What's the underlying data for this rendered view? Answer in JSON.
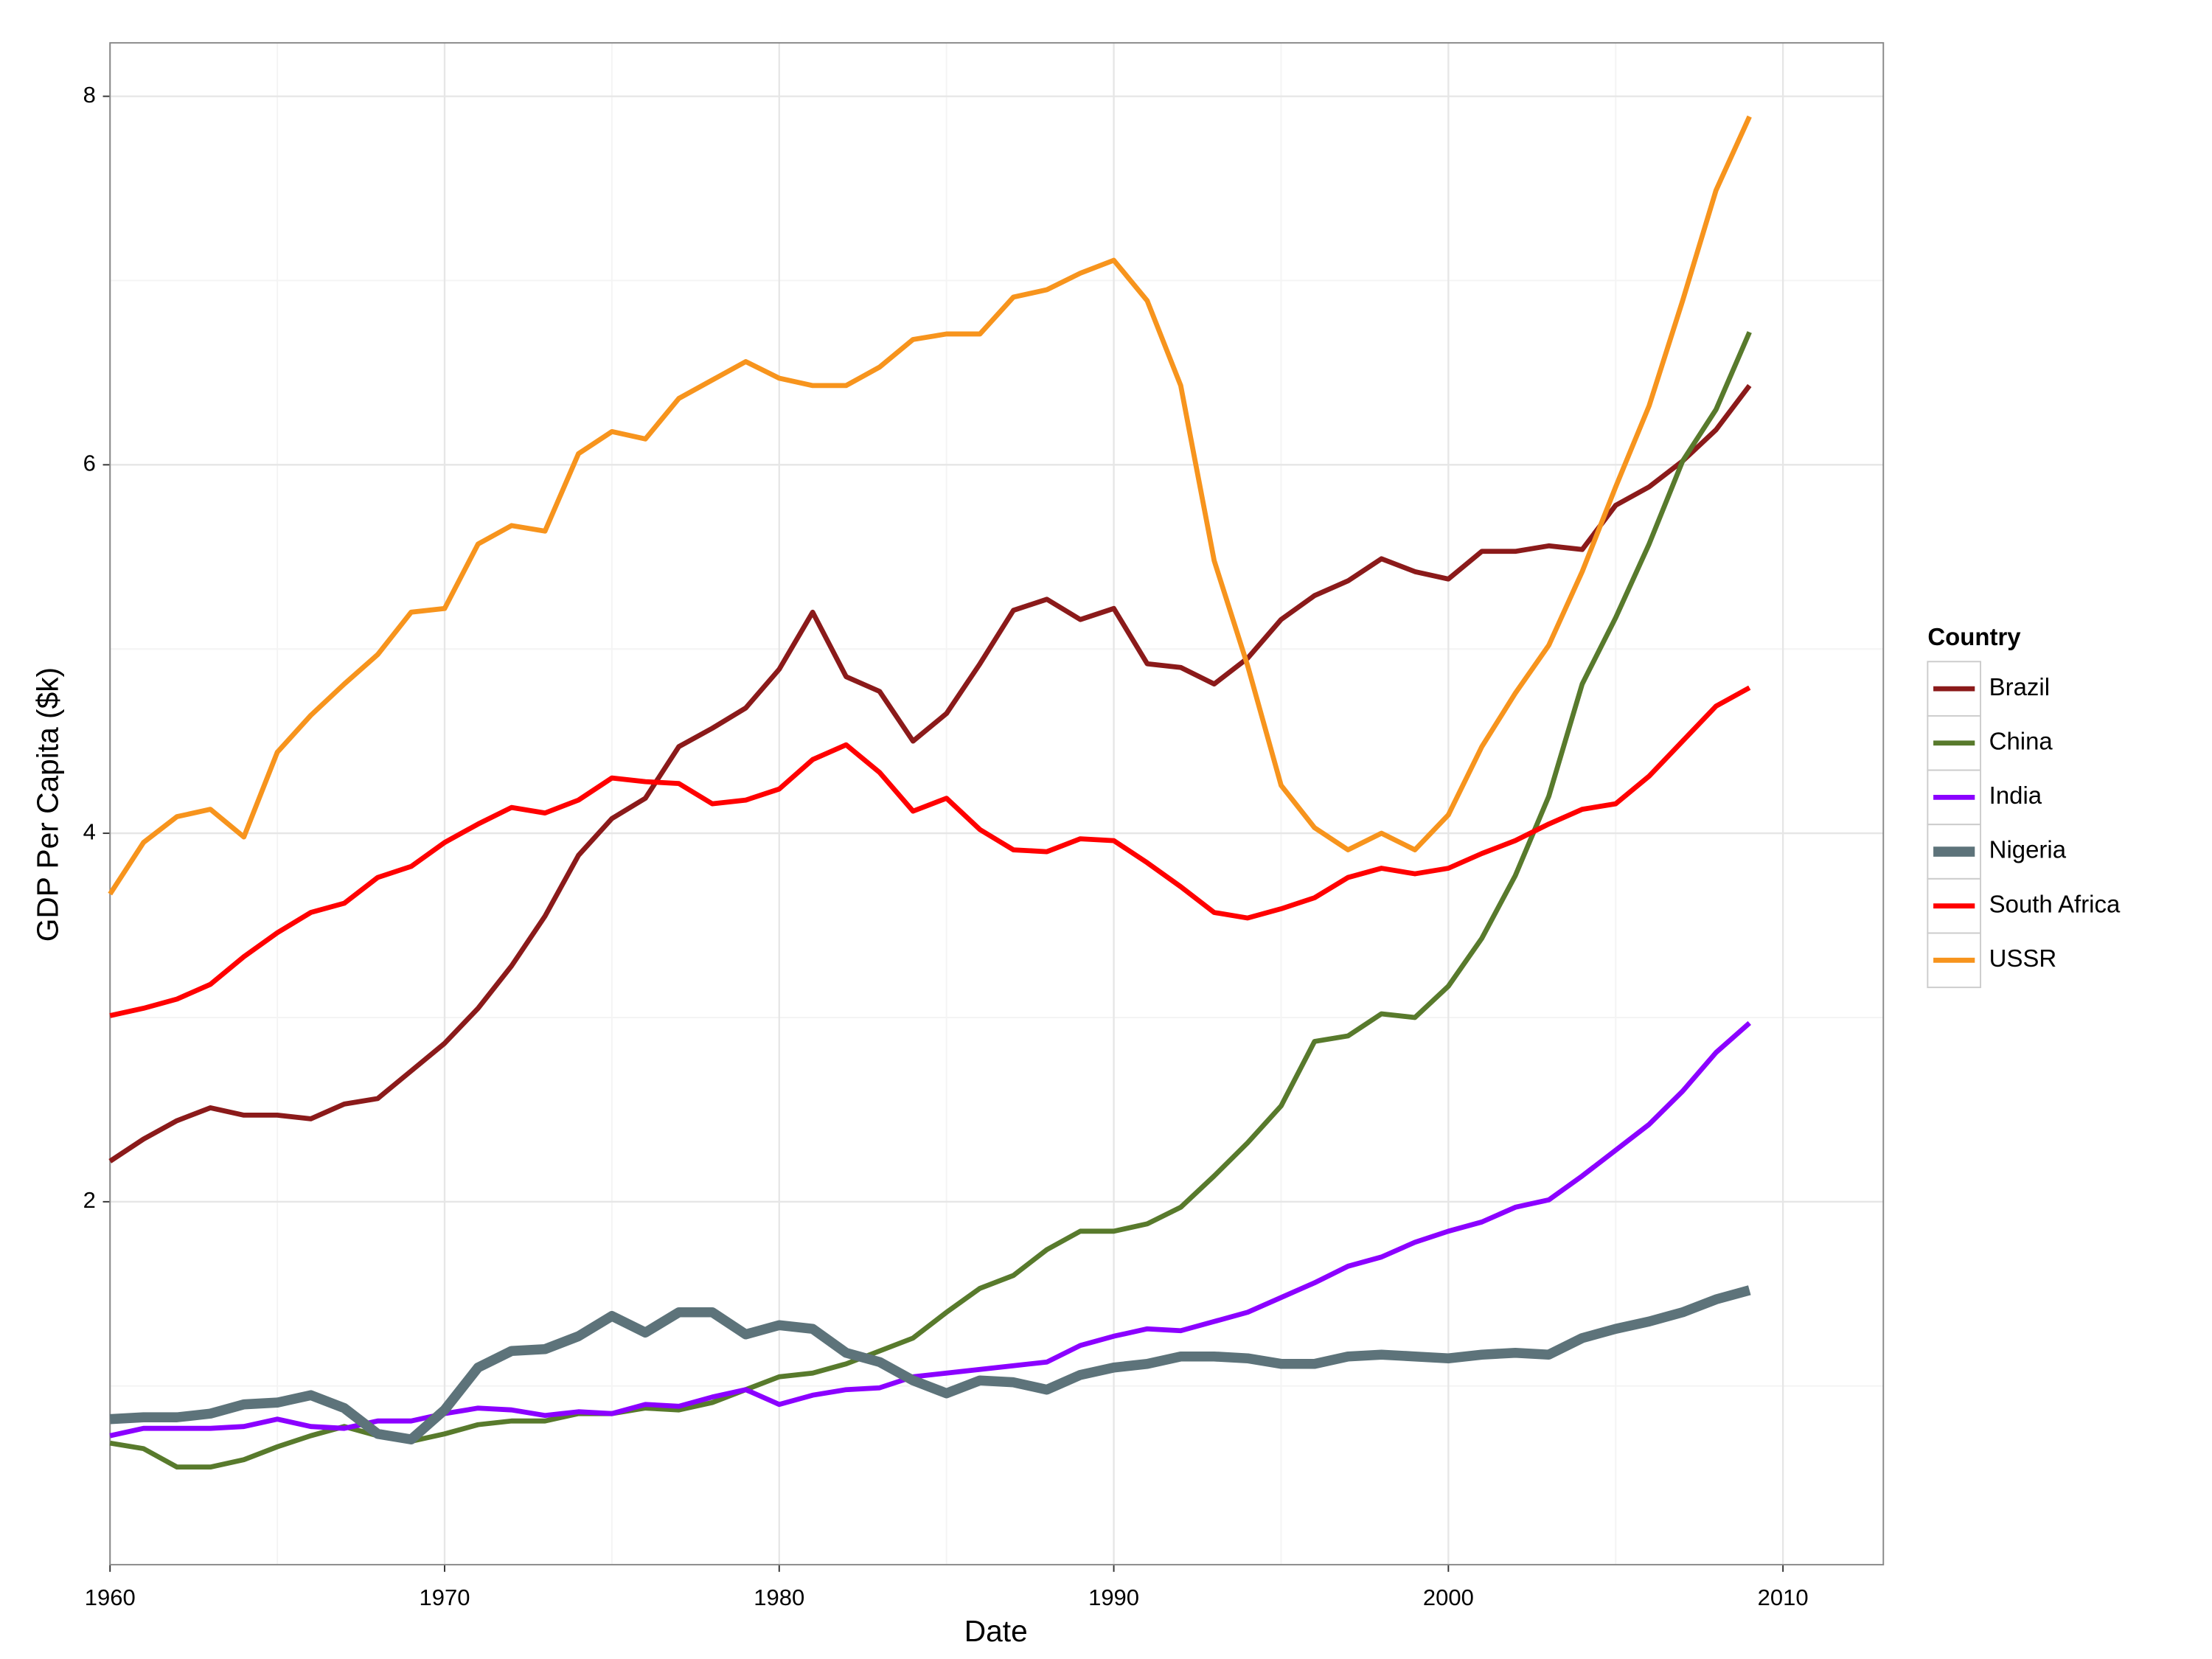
{
  "chart_data": {
    "type": "line",
    "x_label": "Date",
    "y_label": "GDP Per Capita ($k)",
    "legend_title": "Country",
    "legend": "right",
    "grid": true,
    "xlim": [
      1960,
      2013
    ],
    "ylim": [
      0.03,
      8.29
    ],
    "xticks": [
      1960,
      1970,
      1980,
      1990,
      2000,
      2010
    ],
    "yticks": [
      2,
      4,
      6,
      8
    ],
    "x_minor_grid": [
      1965,
      1975,
      1985,
      1995,
      2005
    ],
    "y_minor_grid": [
      1,
      3,
      5,
      7
    ],
    "x": [
      1960,
      1961,
      1962,
      1963,
      1964,
      1965,
      1966,
      1967,
      1968,
      1969,
      1970,
      1971,
      1972,
      1973,
      1974,
      1975,
      1976,
      1977,
      1978,
      1979,
      1980,
      1981,
      1982,
      1983,
      1984,
      1985,
      1986,
      1987,
      1988,
      1989,
      1990,
      1991,
      1992,
      1993,
      1994,
      1995,
      1996,
      1997,
      1998,
      1999,
      2000,
      2001,
      2002,
      2003,
      2004,
      2005,
      2006,
      2007,
      2008,
      2009
    ],
    "series": [
      {
        "name": "Brazil",
        "color": "#8b1a1a",
        "linewidth": 3.5,
        "values": [
          2.22,
          2.34,
          2.44,
          2.51,
          2.47,
          2.47,
          2.45,
          2.53,
          2.56,
          2.71,
          2.86,
          3.05,
          3.28,
          3.55,
          3.88,
          4.08,
          4.19,
          4.47,
          4.57,
          4.68,
          4.89,
          5.2,
          4.85,
          4.77,
          4.5,
          4.65,
          4.92,
          5.21,
          5.27,
          5.16,
          5.22,
          4.92,
          4.9,
          4.81,
          4.95,
          5.16,
          5.29,
          5.37,
          5.49,
          5.42,
          5.38,
          5.53,
          5.53,
          5.56,
          5.54,
          5.78,
          5.88,
          6.02,
          6.19,
          6.43
        ]
      },
      {
        "name": "China",
        "color": "#587a2c",
        "linewidth": 3.5,
        "values": [
          0.69,
          0.66,
          0.56,
          0.56,
          0.6,
          0.67,
          0.73,
          0.78,
          0.73,
          0.7,
          0.74,
          0.79,
          0.81,
          0.81,
          0.85,
          0.85,
          0.88,
          0.87,
          0.91,
          0.98,
          1.05,
          1.07,
          1.12,
          1.19,
          1.26,
          1.4,
          1.53,
          1.6,
          1.74,
          1.84,
          1.84,
          1.88,
          1.97,
          2.14,
          2.32,
          2.52,
          2.87,
          2.9,
          3.02,
          3.0,
          3.17,
          3.43,
          3.77,
          4.2,
          4.81,
          5.17,
          5.57,
          6.02,
          6.3,
          6.72
        ]
      },
      {
        "name": "India",
        "color": "#8b00ff",
        "linewidth": 3.5,
        "values": [
          0.73,
          0.77,
          0.77,
          0.77,
          0.78,
          0.82,
          0.78,
          0.77,
          0.81,
          0.81,
          0.85,
          0.88,
          0.87,
          0.84,
          0.86,
          0.85,
          0.9,
          0.89,
          0.94,
          0.98,
          0.9,
          0.95,
          0.98,
          0.99,
          1.05,
          1.07,
          1.09,
          1.11,
          1.13,
          1.22,
          1.27,
          1.31,
          1.3,
          1.35,
          1.4,
          1.48,
          1.56,
          1.65,
          1.7,
          1.78,
          1.84,
          1.89,
          1.97,
          2.01,
          2.14,
          2.28,
          2.42,
          2.6,
          2.81,
          2.97
        ]
      },
      {
        "name": "Nigeria",
        "color": "#5d737a",
        "linewidth": 7,
        "values": [
          0.82,
          0.83,
          0.83,
          0.85,
          0.9,
          0.91,
          0.95,
          0.88,
          0.74,
          0.71,
          0.87,
          1.1,
          1.19,
          1.2,
          1.27,
          1.38,
          1.29,
          1.4,
          1.4,
          1.28,
          1.33,
          1.31,
          1.18,
          1.13,
          1.03,
          0.96,
          1.03,
          1.02,
          0.98,
          1.06,
          1.1,
          1.12,
          1.16,
          1.16,
          1.15,
          1.12,
          1.12,
          1.16,
          1.17,
          1.16,
          1.15,
          1.17,
          1.18,
          1.17,
          1.26,
          1.31,
          1.35,
          1.4,
          1.47,
          1.52
        ]
      },
      {
        "name": "South Africa",
        "color": "#ff0000",
        "linewidth": 3.5,
        "values": [
          3.01,
          3.05,
          3.1,
          3.18,
          3.33,
          3.46,
          3.57,
          3.62,
          3.76,
          3.82,
          3.95,
          4.05,
          4.14,
          4.11,
          4.18,
          4.3,
          4.28,
          4.27,
          4.16,
          4.18,
          4.24,
          4.4,
          4.48,
          4.33,
          4.12,
          4.19,
          4.02,
          3.91,
          3.9,
          3.97,
          3.96,
          3.84,
          3.71,
          3.57,
          3.54,
          3.59,
          3.65,
          3.76,
          3.81,
          3.78,
          3.81,
          3.89,
          3.96,
          4.05,
          4.13,
          4.16,
          4.31,
          4.5,
          4.69,
          4.79
        ]
      },
      {
        "name": "USSR",
        "color": "#f7941d",
        "linewidth": 3.5,
        "values": [
          3.67,
          3.95,
          4.09,
          4.13,
          3.98,
          4.44,
          4.64,
          4.81,
          4.97,
          5.2,
          5.22,
          5.57,
          5.67,
          5.64,
          6.06,
          6.18,
          6.14,
          6.36,
          6.46,
          6.56,
          6.47,
          6.43,
          6.43,
          6.53,
          6.68,
          6.71,
          6.71,
          6.91,
          6.95,
          7.04,
          7.11,
          6.89,
          6.43,
          5.48,
          4.91,
          4.26,
          4.03,
          3.91,
          4.0,
          3.91,
          4.1,
          4.47,
          4.76,
          5.02,
          5.42,
          5.88,
          6.32,
          6.89,
          7.49,
          7.89
        ]
      }
    ]
  }
}
